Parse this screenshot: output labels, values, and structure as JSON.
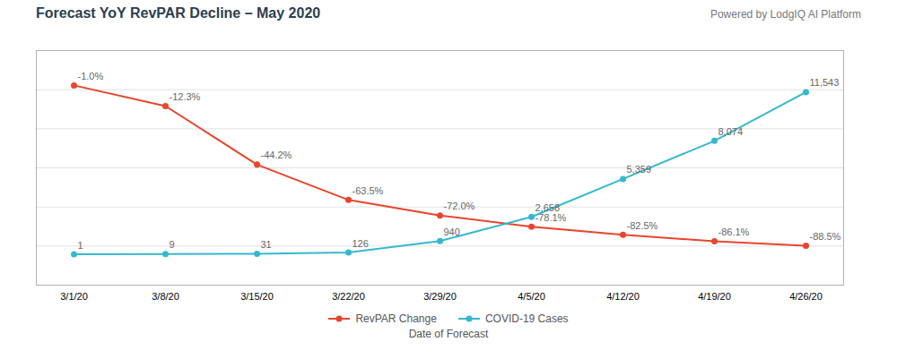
{
  "chart_data": {
    "type": "line",
    "title": "Forecast YoY RevPAR Decline – May 2020",
    "subtitle": "Powered by LodgIQ AI Platform",
    "xlabel": "Date of Forecast",
    "categories": [
      "3/1/20",
      "3/8/20",
      "3/15/20",
      "3/22/20",
      "3/29/20",
      "4/5/20",
      "4/12/20",
      "4/19/20",
      "4/26/20"
    ],
    "series": [
      {
        "name": "RevPAR Change",
        "color": "#E8452C",
        "marker": "o",
        "values": [
          -1.0,
          -12.3,
          -44.2,
          -63.5,
          -72.0,
          -78.1,
          -82.5,
          -86.1,
          -88.5
        ],
        "value_labels": [
          "-1.0%",
          "-12.3%",
          "-44.2%",
          "-63.5%",
          "-72.0%",
          "-78.1%",
          "-82.5%",
          "-86.1%",
          "-88.5%"
        ]
      },
      {
        "name": "COVID-19 Cases",
        "color": "#35B8CE",
        "marker": "o",
        "axis": "y2",
        "values": [
          1,
          9,
          31,
          126,
          940,
          2658,
          5359,
          8074,
          11543
        ],
        "value_labels": [
          "1",
          "9",
          "31",
          "126",
          "940",
          "2,658",
          "5,359",
          "8,074",
          "11,543"
        ]
      }
    ],
    "ylim": [
      -110,
      18
    ],
    "yticks": [
      -88.66666666666667,
      -67.33333333333333,
      -46,
      -24.666666666666664,
      -3.333333333333343
    ],
    "y2lim": [
      -2200,
      14500
    ],
    "grid": true,
    "tick_labels": "x",
    "data_labels": true,
    "legend": "bottom"
  }
}
